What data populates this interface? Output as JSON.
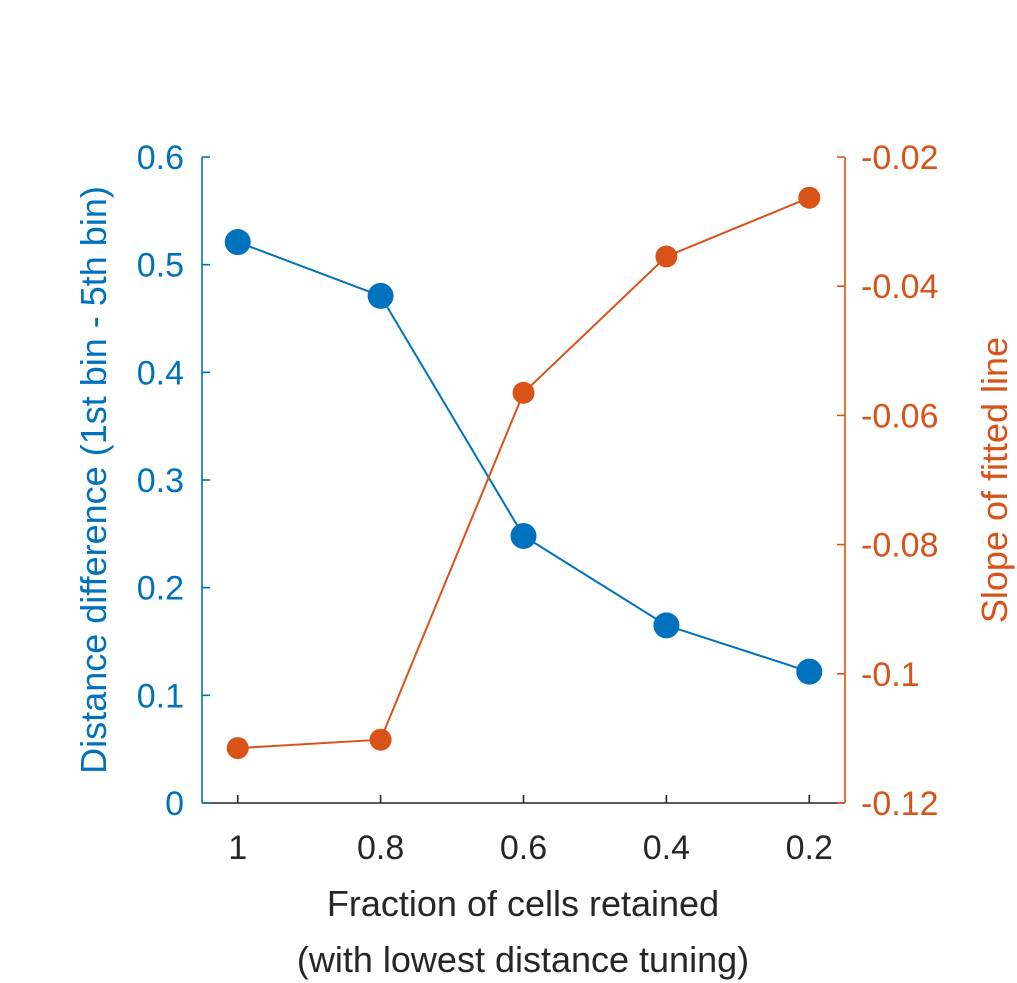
{
  "chart_data": {
    "type": "line",
    "xlabel_line1": "Fraction of cells retained",
    "xlabel_line2": "(with lowest distance tuning)",
    "x": [
      1,
      0.8,
      0.6,
      0.4,
      0.2
    ],
    "xticks": [
      "1",
      "0.8",
      "0.6",
      "0.4",
      "0.2"
    ],
    "xlim": [
      1.05,
      0.15
    ],
    "y_left": {
      "label": "Distance difference (1st bin - 5th bin)",
      "lim": [
        0,
        0.6
      ],
      "ticks": [
        0,
        0.1,
        0.2,
        0.3,
        0.4,
        0.5,
        0.6
      ],
      "tick_labels": [
        "0",
        "0.1",
        "0.2",
        "0.3",
        "0.4",
        "0.5",
        "0.6"
      ],
      "color": "#0072BD"
    },
    "y_right": {
      "label": "Slope of fitted line",
      "lim": [
        -0.12,
        -0.02
      ],
      "ticks": [
        -0.12,
        -0.1,
        -0.08,
        -0.06,
        -0.04,
        -0.02
      ],
      "tick_labels": [
        "-0.12",
        "-0.1",
        "-0.08",
        "-0.06",
        "-0.04",
        "-0.02"
      ],
      "color": "#D95319"
    },
    "series": [
      {
        "name": "Distance difference",
        "axis": "left",
        "color": "#0072BD",
        "values": [
          0.521,
          0.471,
          0.248,
          0.165,
          0.122
        ]
      },
      {
        "name": "Slope of fitted line",
        "axis": "right",
        "color": "#D95319",
        "values": [
          -0.1115,
          -0.1102,
          -0.0565,
          -0.0354,
          -0.0263
        ]
      }
    ]
  }
}
